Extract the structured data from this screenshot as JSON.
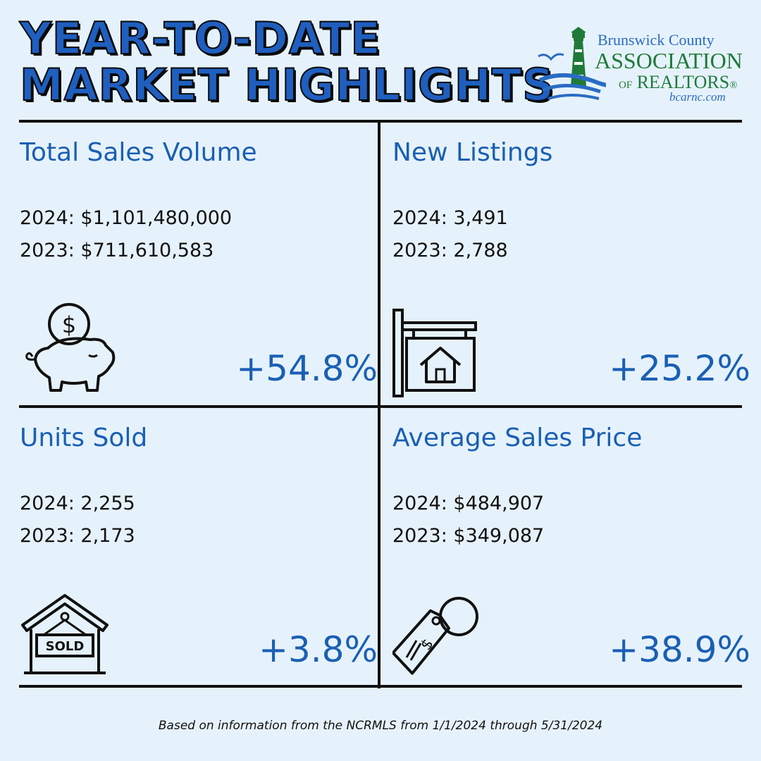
{
  "title": {
    "line1": "YEAR-TO-DATE",
    "line2": "MARKET HIGHLIGHTS"
  },
  "logo": {
    "line1": "Brunswick County",
    "line2": "ASSOCIATION",
    "line3_of": "OF",
    "line3": "REALTORS",
    "registered": "®",
    "website": "bcarnc.com"
  },
  "cells": {
    "total_sales_volume": {
      "heading": "Total Sales Volume",
      "row2024": "2024: $1,101,480,000",
      "row2023": "2023: $711,610,583",
      "change": "+54.8%",
      "icon": "piggy-bank-icon"
    },
    "new_listings": {
      "heading": "New Listings",
      "row2024": "2024: 3,491",
      "row2023": "2023: 2,788",
      "change": "+25.2%",
      "icon": "listing-sign-icon"
    },
    "units_sold": {
      "heading": "Units Sold",
      "row2024": "2024: 2,255",
      "row2023": "2023: 2,173",
      "change": "+3.8%",
      "icon": "sold-house-icon",
      "icon_text": "SOLD"
    },
    "average_sales_price": {
      "heading": "Average Sales Price",
      "row2024": "2024: $484,907",
      "row2023": "2023: $349,087",
      "change": "+38.9%",
      "icon": "price-tag-icon"
    }
  },
  "footer": "Based on information from the NCRMLS from 1/1/2024 through 5/31/2024",
  "colors": {
    "background": "#e6f2fb",
    "accent": "#1a5fb4",
    "logo_green": "#1f7a3a"
  }
}
